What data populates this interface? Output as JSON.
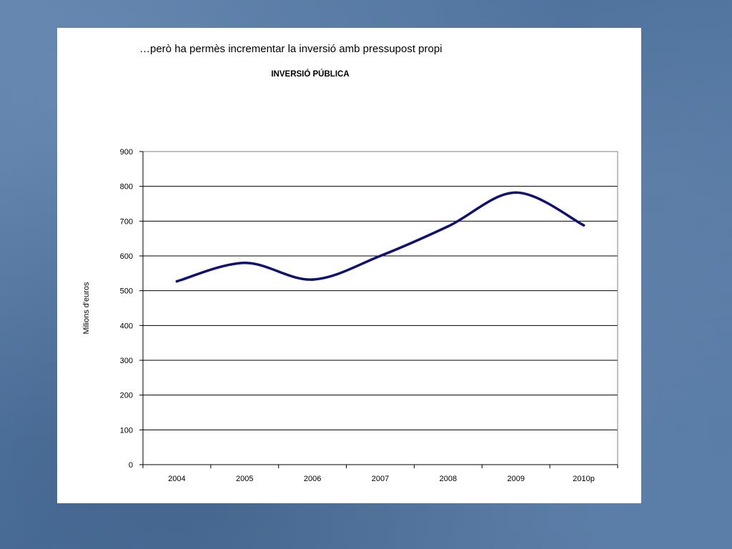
{
  "slide": {
    "title": "…però ha permès incrementar la inversió amb pressupost propi"
  },
  "colors": {
    "background": "#4f74a0",
    "panel": "#ffffff",
    "series_line": "#10106e",
    "gridline": "#000000"
  },
  "chart_data": {
    "type": "line",
    "title": "INVERSIÓ PÚBLICA",
    "xlabel": "",
    "ylabel": "Milions d'euros",
    "categories": [
      "2004",
      "2005",
      "2006",
      "2007",
      "2008",
      "2009",
      "2010p"
    ],
    "series": [
      {
        "values": [
          527,
          580,
          532,
          600,
          685,
          782,
          688
        ]
      }
    ],
    "ylim": [
      0,
      900
    ],
    "yticks": [
      0,
      100,
      200,
      300,
      400,
      500,
      600,
      700,
      800,
      900
    ],
    "smooth": true,
    "grid": "horizontal",
    "legend": "none"
  }
}
